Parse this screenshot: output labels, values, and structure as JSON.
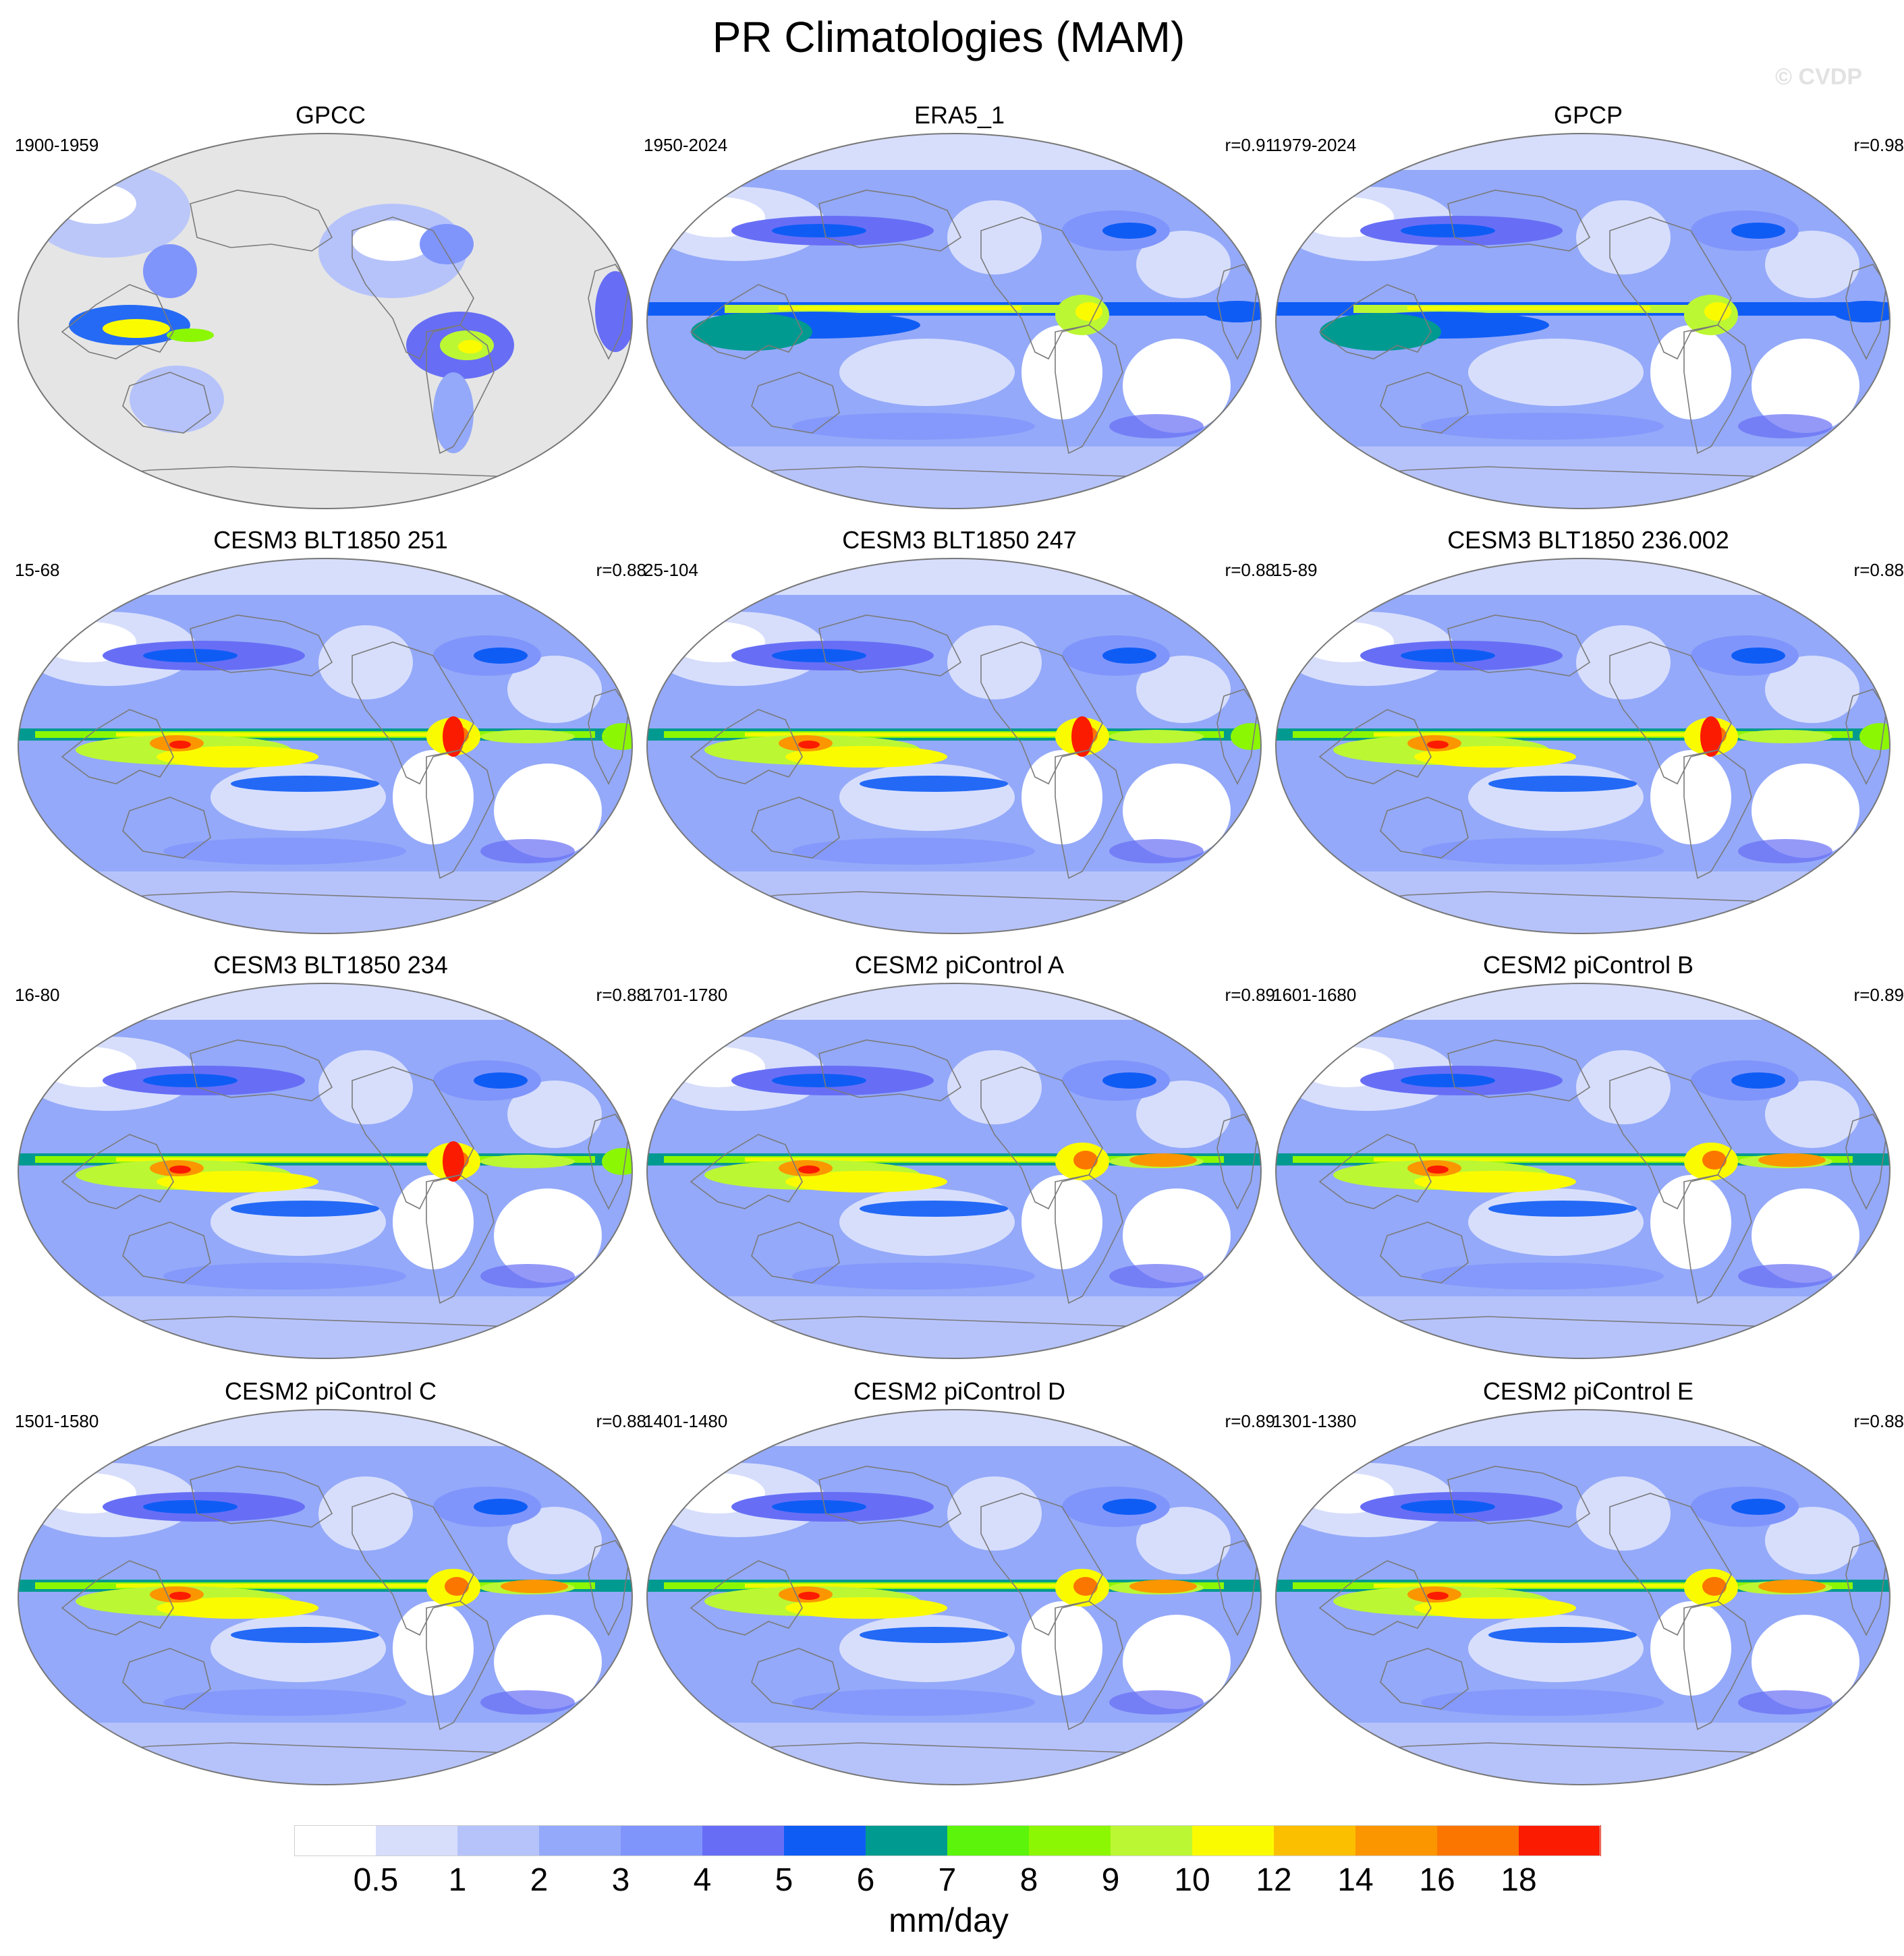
{
  "title": "PR Climatologies (MAM)",
  "watermark": "© CVDP",
  "panels": [
    {
      "name": "GPCC",
      "period": "1900-1959",
      "corr": "",
      "style": "obs"
    },
    {
      "name": "ERA5_1",
      "period": "1950-2024",
      "corr": "r=0.91",
      "style": "era"
    },
    {
      "name": "GPCP",
      "period": "1979-2024",
      "corr": "r=0.98",
      "style": "gpcp"
    },
    {
      "name": "CESM3 BLT1850 251",
      "period": "15-68",
      "corr": "r=0.88",
      "style": "model"
    },
    {
      "name": "CESM3 BLT1850 247",
      "period": "25-104",
      "corr": "r=0.88",
      "style": "model"
    },
    {
      "name": "CESM3 BLT1850 236.002",
      "period": "15-89",
      "corr": "r=0.88",
      "style": "model"
    },
    {
      "name": "CESM3 BLT1850 234",
      "period": "16-80",
      "corr": "r=0.88",
      "style": "model"
    },
    {
      "name": "CESM2 piControl A",
      "period": "1701-1780",
      "corr": "r=0.89",
      "style": "model2"
    },
    {
      "name": "CESM2 piControl B",
      "period": "1601-1680",
      "corr": "r=0.89",
      "style": "model2"
    },
    {
      "name": "CESM2 piControl C",
      "period": "1501-1580",
      "corr": "r=0.88",
      "style": "model2"
    },
    {
      "name": "CESM2 piControl D",
      "period": "1401-1480",
      "corr": "r=0.89",
      "style": "model2"
    },
    {
      "name": "CESM2 piControl E",
      "period": "1301-1380",
      "corr": "r=0.88",
      "style": "model2"
    }
  ],
  "colorbar": {
    "levels": [
      "0.5",
      "1",
      "2",
      "3",
      "4",
      "5",
      "6",
      "7",
      "8",
      "9",
      "10",
      "12",
      "14",
      "16",
      "18"
    ],
    "colors": [
      "#ffffff",
      "#d7defc",
      "#b6c3fb",
      "#94a9f9",
      "#8095fb",
      "#676ef5",
      "#0f5cf5",
      "#009a90",
      "#5cf40a",
      "#8cf703",
      "#bcf734",
      "#fbfb00",
      "#fbbf00",
      "#fb9600",
      "#fb7600",
      "#fb1b00"
    ],
    "units": "mm/day"
  },
  "map_colors": {
    "land_missing": "#e5e5e5",
    "coast": "#7a7a7a",
    "outline": "#777777"
  }
}
